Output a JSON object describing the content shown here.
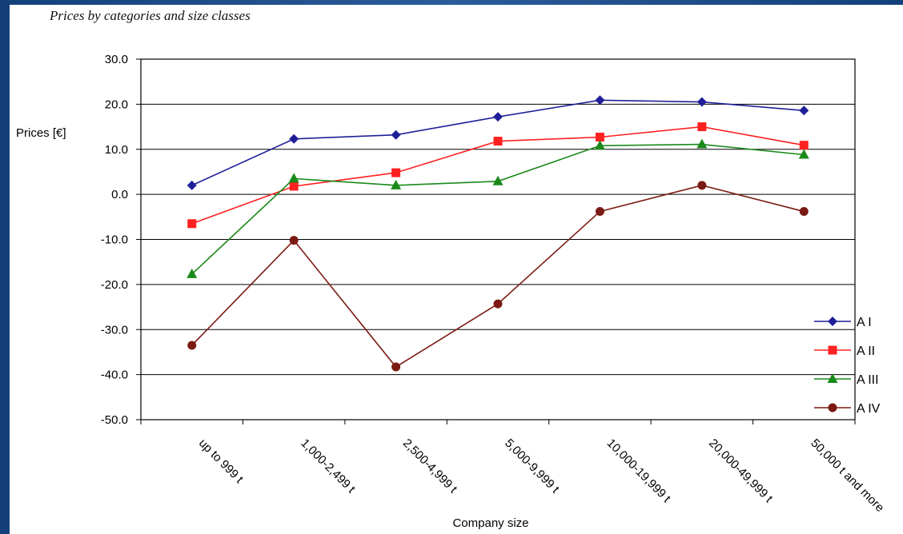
{
  "page_title": "Prices by categories and size classes",
  "chart_data": {
    "type": "line",
    "title": "",
    "xlabel": "Company size",
    "ylabel": "Prices [€]",
    "ylim": [
      -50,
      30
    ],
    "ytick_step": 10,
    "ytick_labels": [
      "30.0",
      "20.0",
      "10.0",
      "0.0",
      "-10.0",
      "-20.0",
      "-30.0",
      "-40.0",
      "-50.0"
    ],
    "grid": true,
    "legend_position": "right",
    "categories": [
      "up to 999 t",
      "1,000-2,499 t",
      "2,500-4,999 t",
      "5,000-9,999 t",
      "10,000-19,999 t",
      "20,000-49,999 t",
      "50,000 t and more"
    ],
    "series": [
      {
        "name": "A I",
        "color": "#1f1f99",
        "marker": "diamond",
        "values": [
          2.0,
          12.3,
          13.2,
          17.2,
          20.9,
          20.5,
          18.6
        ]
      },
      {
        "name": "A II",
        "color": "#ff2020",
        "marker": "square",
        "values": [
          -6.5,
          1.8,
          4.8,
          11.8,
          12.7,
          15.0,
          10.9
        ]
      },
      {
        "name": "A III",
        "color": "#1a8a1a",
        "marker": "triangle",
        "values": [
          -17.7,
          3.5,
          2.0,
          2.9,
          10.8,
          11.1,
          8.8
        ]
      },
      {
        "name": "A IV",
        "color": "#7a1a12",
        "marker": "circle",
        "values": [
          -33.5,
          -10.2,
          -38.3,
          -24.3,
          -3.8,
          2.0,
          -3.8
        ]
      }
    ]
  }
}
